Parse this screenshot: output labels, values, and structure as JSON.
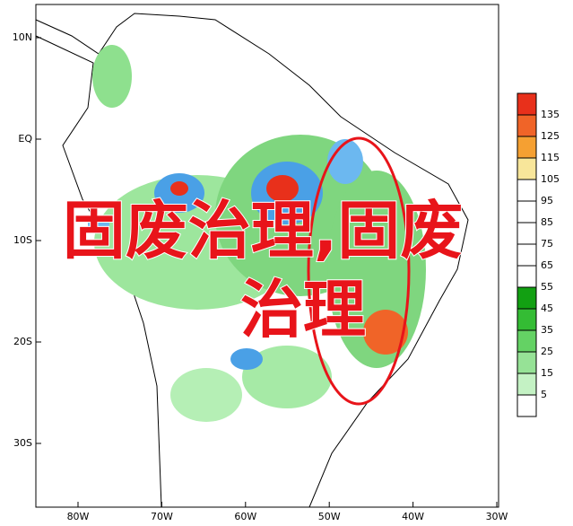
{
  "map": {
    "lon_labels": [
      "80W",
      "70W",
      "60W",
      "50W",
      "40W",
      "30W"
    ],
    "lat_labels": [
      "10N",
      "EQ",
      "10S",
      "20S",
      "30S"
    ],
    "colorbar": {
      "labels": [
        135,
        125,
        115,
        105,
        95,
        85,
        75,
        65,
        55,
        45,
        35,
        25,
        15,
        5
      ],
      "colors": [
        "#e8301b",
        "#f06428",
        "#f5a032",
        "#f8e69a",
        "#ffffff",
        "#ffffff",
        "#ffffff",
        "#ffffff",
        "#ffffff",
        "#12a012",
        "#34bc34",
        "#64d264",
        "#96e296",
        "#c4f2c4",
        "#ffffff"
      ]
    }
  },
  "overlay": {
    "line1": "固废治理,固废",
    "line2": "治理"
  }
}
